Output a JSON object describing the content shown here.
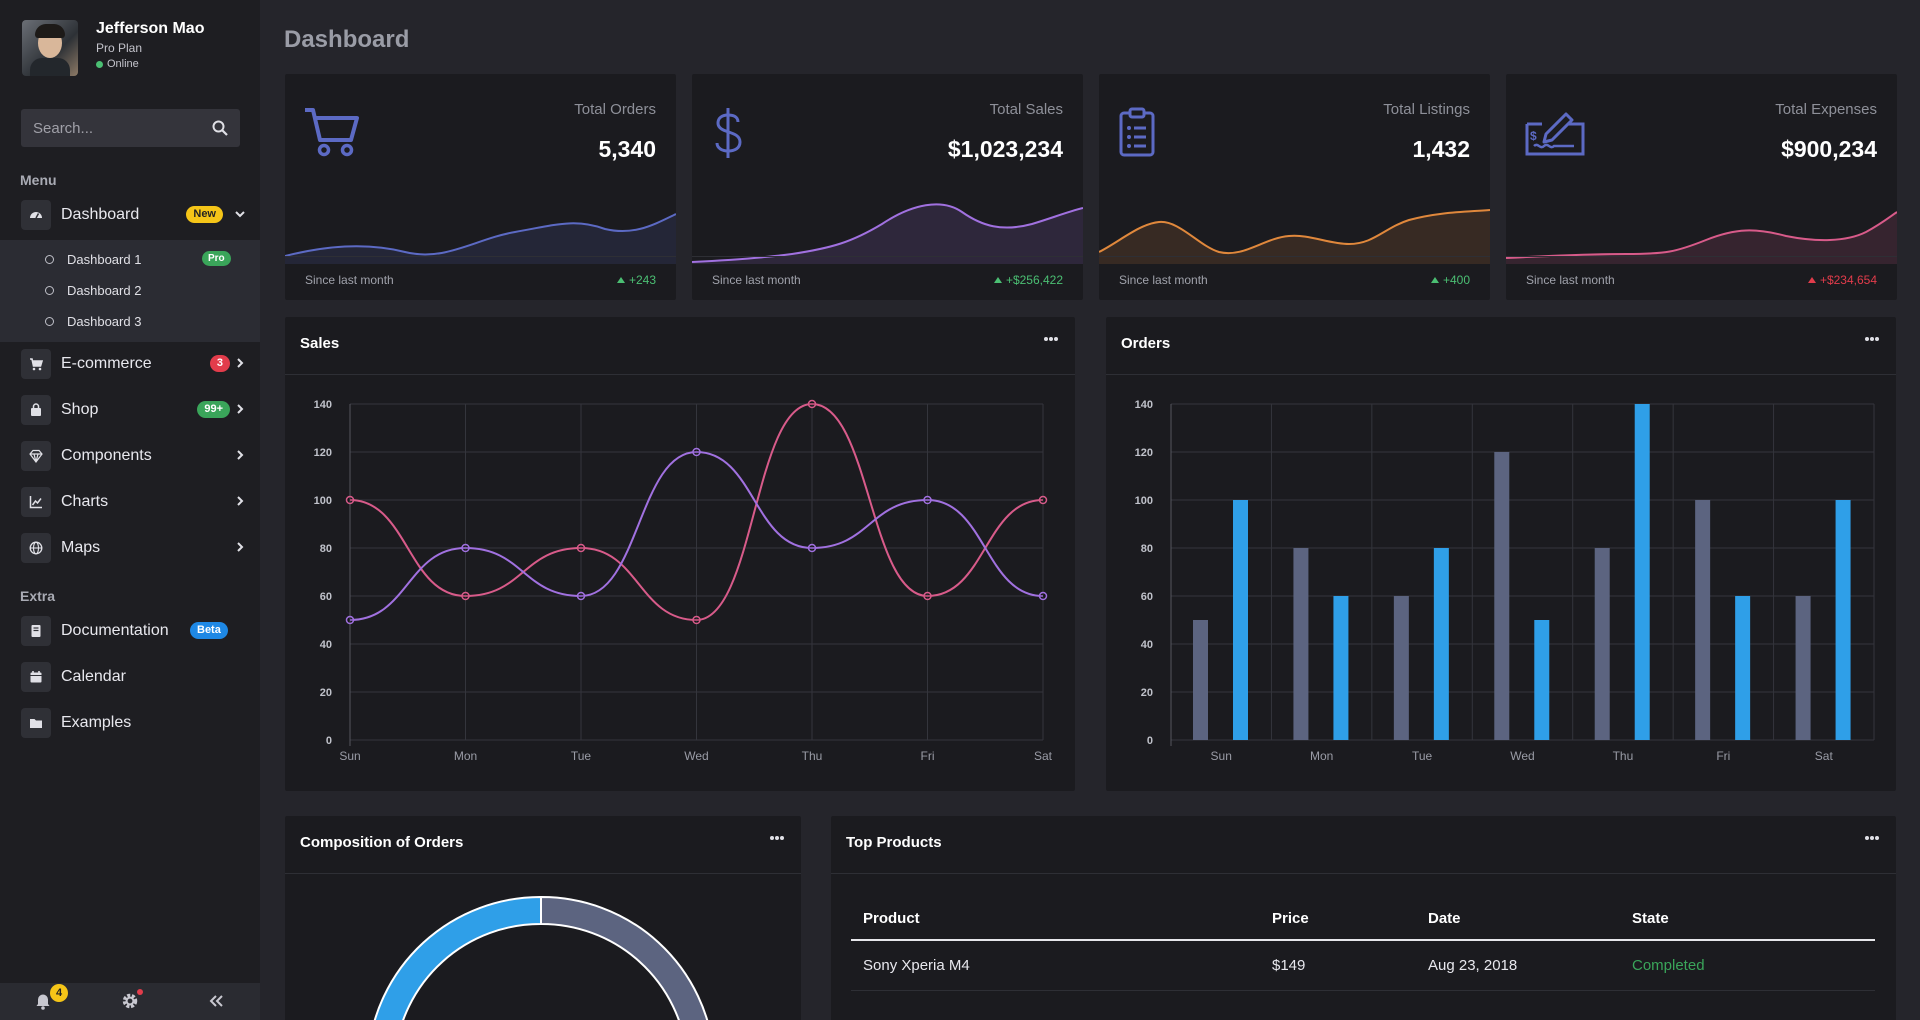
{
  "user": {
    "name": "Jefferson Mao",
    "plan": "Pro Plan",
    "status": "Online"
  },
  "search": {
    "placeholder": "Search..."
  },
  "sidebar": {
    "menu_label": "Menu",
    "extra_label": "Extra",
    "dashboard": {
      "label": "Dashboard",
      "badge": "New"
    },
    "dashboard_sub": [
      {
        "label": "Dashboard 1",
        "badge": "Pro"
      },
      {
        "label": "Dashboard 2"
      },
      {
        "label": "Dashboard 3"
      }
    ],
    "ecommerce": {
      "label": "E-commerce",
      "badge": "3"
    },
    "shop": {
      "label": "Shop",
      "badge": "99+"
    },
    "components": {
      "label": "Components"
    },
    "charts": {
      "label": "Charts"
    },
    "maps": {
      "label": "Maps"
    },
    "documentation": {
      "label": "Documentation",
      "badge": "Beta"
    },
    "calendar": {
      "label": "Calendar"
    },
    "examples": {
      "label": "Examples"
    },
    "footer": {
      "notifications": "4"
    }
  },
  "page_title": "Dashboard",
  "stats": [
    {
      "title": "Total Orders",
      "value": "5,340",
      "foot": "Since last month",
      "delta": "+243",
      "trend": "up",
      "color": "#5c6ac4"
    },
    {
      "title": "Total Sales",
      "value": "$1,023,234",
      "foot": "Since last month",
      "delta": "+$256,422",
      "trend": "up",
      "color": "#a171e0"
    },
    {
      "title": "Total Listings",
      "value": "1,432",
      "foot": "Since last month",
      "delta": "+400",
      "trend": "up",
      "color": "#e0883c"
    },
    {
      "title": "Total Expenses",
      "value": "$900,234",
      "foot": "Since last month",
      "delta": "+$234,654",
      "trend": "up",
      "color": "#d85b8a"
    }
  ],
  "colors": {
    "up": "#4bbf73",
    "down": "#e23c4b",
    "blue": "#2f9fe8",
    "gray_bar": "#5c6480",
    "pink": "#d85b8a",
    "purple": "#a171e0"
  },
  "sales_card": {
    "title": "Sales"
  },
  "orders_card": {
    "title": "Orders"
  },
  "composition_card": {
    "title": "Composition of Orders"
  },
  "top_products": {
    "title": "Top Products",
    "columns": [
      "Product",
      "Price",
      "Date",
      "State"
    ],
    "rows": [
      {
        "product": "Sony Xperia M4",
        "price": "$149",
        "date": "Aug 23, 2018",
        "state": "Completed"
      }
    ]
  },
  "chart_data": [
    {
      "type": "line",
      "categories": [
        "Sun",
        "Mon",
        "Tue",
        "Wed",
        "Thu",
        "Fri",
        "Sat"
      ],
      "ylim": [
        0,
        140
      ],
      "yticks": [
        0,
        20,
        40,
        60,
        80,
        100,
        120,
        140
      ],
      "series": [
        {
          "values": [
            100,
            60,
            80,
            50,
            140,
            60,
            100
          ],
          "color": "#d85b8a"
        },
        {
          "values": [
            50,
            80,
            60,
            120,
            80,
            100,
            60
          ],
          "color": "#a171e0"
        }
      ],
      "grid": true
    },
    {
      "type": "bar",
      "categories": [
        "Sun",
        "Mon",
        "Tue",
        "Wed",
        "Thu",
        "Fri",
        "Sat"
      ],
      "ylim": [
        0,
        140
      ],
      "yticks": [
        0,
        20,
        40,
        60,
        80,
        100,
        120,
        140
      ],
      "series": [
        {
          "values": [
            50,
            80,
            60,
            120,
            80,
            100,
            60
          ],
          "color": "#5c6480"
        },
        {
          "values": [
            100,
            60,
            80,
            50,
            140,
            60,
            100
          ],
          "color": "#2f9fe8"
        }
      ],
      "grid": true
    }
  ]
}
